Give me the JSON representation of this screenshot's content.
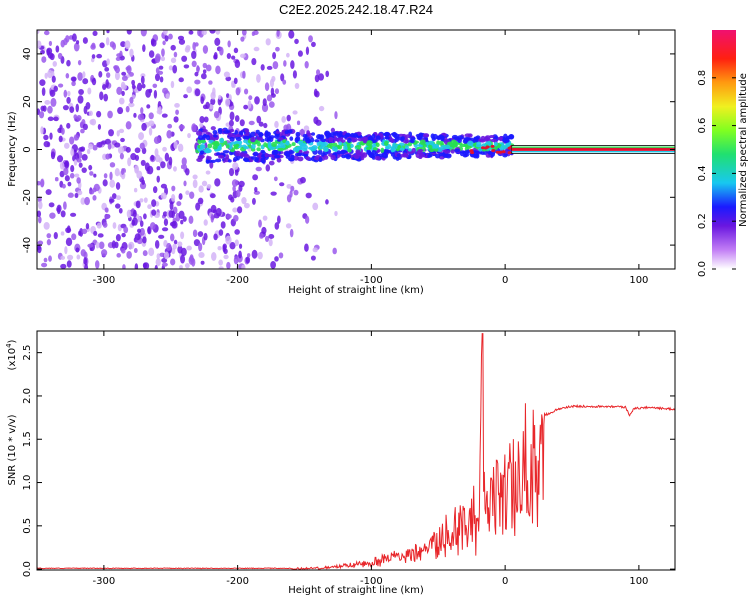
{
  "title": "C2E2.2025.242.18.47.R24",
  "colors": {
    "signal_line": "#e8262a",
    "scatter_purple": "#6a17e0",
    "band_green": "#28e050",
    "band_cyan": "#20c8e8",
    "band_red": "#e01030"
  },
  "chart_data": [
    {
      "type": "heatmap",
      "xlabel": "Height of straight line (km)",
      "ylabel": "Frequency (Hz)",
      "xlim": [
        -350,
        127
      ],
      "ylim": [
        -50,
        50
      ],
      "xticks": [
        -300,
        -200,
        -100,
        0,
        100
      ],
      "xtick_labels": [
        "-300",
        "-200",
        "-100",
        "0",
        "100"
      ],
      "yticks": [
        -40,
        -20,
        0,
        20,
        40
      ],
      "ytick_labels": [
        "-40",
        "-20",
        "0",
        "20",
        "40"
      ],
      "colorbar": {
        "label": "Normalized spectral amplitude",
        "range": [
          0,
          1
        ],
        "ticks": [
          0.0,
          0.2,
          0.4,
          0.6,
          0.8
        ],
        "tick_labels": [
          "0.0",
          "0.2",
          "0.4",
          "0.6",
          "0.8"
        ]
      },
      "features": {
        "carrier_line_freq_hz": 0,
        "carrier_start_km": 5,
        "noise_region_km": [
          -350,
          -150
        ],
        "band_region_km": [
          -230,
          5
        ]
      }
    },
    {
      "type": "line",
      "xlabel": "Height of straight line (km)",
      "ylabel": "SNR (10 * v/v)",
      "multiplier_label": "(x10",
      "multiplier_exp": "4",
      "multiplier_close": ")",
      "xlim": [
        -350,
        127
      ],
      "ylim": [
        -0.01,
        2.75
      ],
      "xticks": [
        -300,
        -200,
        -100,
        0,
        100
      ],
      "xtick_labels": [
        "-300",
        "-200",
        "-100",
        "0",
        "100"
      ],
      "yticks": [
        0.0,
        0.5,
        1.0,
        1.5,
        2.0,
        2.5
      ],
      "ytick_labels": [
        "0.0",
        "0.5",
        "1.0",
        "1.5",
        "2.0",
        "2.5"
      ],
      "series": [
        {
          "name": "SNR",
          "x": [
            -350,
            -300,
            -250,
            -200,
            -160,
            -140,
            -120,
            -100,
            -90,
            -80,
            -70,
            -60,
            -50,
            -40,
            -30,
            -25,
            -20,
            -17,
            -15,
            -10,
            -5,
            0,
            5,
            10,
            15,
            20,
            25,
            30,
            40,
            50,
            60,
            80,
            90,
            93,
            96,
            100,
            110,
            120,
            127
          ],
          "values": [
            0.01,
            0.01,
            0.01,
            0.01,
            0.01,
            0.02,
            0.05,
            0.1,
            0.15,
            0.2,
            0.27,
            0.35,
            0.45,
            0.55,
            0.7,
            0.8,
            0.9,
            2.72,
            1.0,
            1.1,
            1.2,
            1.3,
            1.35,
            1.45,
            1.55,
            1.65,
            1.72,
            1.78,
            1.85,
            1.88,
            1.88,
            1.88,
            1.87,
            1.78,
            1.85,
            1.86,
            1.87,
            1.85,
            1.85
          ]
        }
      ]
    }
  ]
}
